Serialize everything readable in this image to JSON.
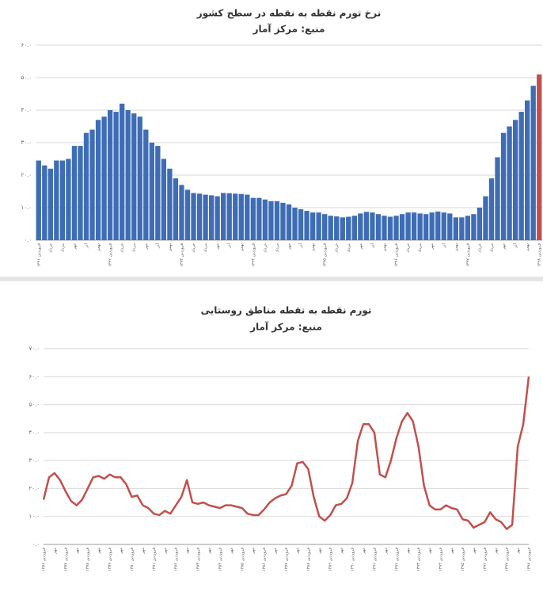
{
  "chart_data": [
    {
      "type": "bar",
      "title": "نرخ تورم نقطه به نقطه در سطح کشور",
      "subtitle": "منبع: مرکز آمار",
      "categories": [
        "فروردین ۱۳۹۱",
        null,
        "خرداد",
        null,
        "مرداد",
        null,
        "مهر",
        null,
        "آذر",
        null,
        "بهمن",
        null,
        "فروردین ۱۳۹۲",
        null,
        "خرداد",
        null,
        "مرداد",
        null,
        "مهر",
        null,
        "آذر",
        null,
        "بهمن",
        null,
        "فروردین ۱۳۹۳",
        null,
        "خرداد",
        null,
        "مرداد",
        null,
        "مهر",
        null,
        "آذر",
        null,
        "بهمن",
        null,
        "فروردین ۱۳۹۴",
        null,
        "خرداد",
        null,
        "مرداد",
        null,
        "مهر",
        null,
        "آذر",
        null,
        "بهمن",
        null,
        "فروردین ۱۳۹۵",
        null,
        "خرداد",
        null,
        "مرداد",
        null,
        "مهر",
        null,
        "آذر",
        null,
        "بهمن",
        null,
        "فروردین ۱۳۹۶",
        null,
        "خرداد",
        null,
        "مرداد",
        null,
        "مهر",
        null,
        "آذر",
        null,
        "بهمن",
        null,
        "فروردین ۱۳۹۷",
        null,
        "خرداد",
        null,
        "مرداد",
        null,
        "مهر",
        null,
        "آذر",
        null,
        "بهمن",
        null,
        "فروردین ۱۳۹۸"
      ],
      "values": [
        24.5,
        23,
        22,
        24.5,
        24.5,
        25,
        29,
        29,
        33,
        34,
        37,
        38,
        40,
        39.5,
        42,
        40,
        39,
        38,
        34,
        30,
        29,
        25,
        22,
        19,
        17,
        15.5,
        14.5,
        14.3,
        14,
        13.8,
        13.5,
        14.5,
        14.4,
        14.3,
        14.2,
        14,
        13,
        13,
        12.5,
        12,
        12,
        11.5,
        11,
        10,
        9.5,
        9,
        8.5,
        8.5,
        8,
        7.5,
        7.3,
        7,
        7.2,
        7.5,
        8.2,
        8.7,
        8.5,
        8,
        7.5,
        7.2,
        7.5,
        8,
        8.5,
        8.5,
        8.2,
        8,
        8.5,
        8.8,
        8.5,
        8.2,
        7,
        7,
        7.5,
        8,
        10,
        13.5,
        19,
        25.5,
        33,
        35,
        37,
        39.5,
        43,
        47.5,
        51
      ],
      "colors": [
        "#3e6db5",
        "#3e6db5",
        "#3e6db5",
        "#3e6db5",
        "#3e6db5",
        "#3e6db5",
        "#3e6db5",
        "#3e6db5",
        "#3e6db5",
        "#3e6db5",
        "#3e6db5",
        "#3e6db5",
        "#3e6db5",
        "#3e6db5",
        "#3e6db5",
        "#3e6db5",
        "#3e6db5",
        "#3e6db5",
        "#3e6db5",
        "#3e6db5",
        "#3e6db5",
        "#3e6db5",
        "#3e6db5",
        "#3e6db5",
        "#3e6db5",
        "#3e6db5",
        "#3e6db5",
        "#3e6db5",
        "#3e6db5",
        "#3e6db5",
        "#3e6db5",
        "#3e6db5",
        "#3e6db5",
        "#3e6db5",
        "#3e6db5",
        "#3e6db5",
        "#3e6db5",
        "#3e6db5",
        "#3e6db5",
        "#3e6db5",
        "#3e6db5",
        "#3e6db5",
        "#3e6db5",
        "#3e6db5",
        "#3e6db5",
        "#3e6db5",
        "#3e6db5",
        "#3e6db5",
        "#3e6db5",
        "#3e6db5",
        "#3e6db5",
        "#3e6db5",
        "#3e6db5",
        "#3e6db5",
        "#3e6db5",
        "#3e6db5",
        "#3e6db5",
        "#3e6db5",
        "#3e6db5",
        "#3e6db5",
        "#3e6db5",
        "#3e6db5",
        "#3e6db5",
        "#3e6db5",
        "#3e6db5",
        "#3e6db5",
        "#3e6db5",
        "#3e6db5",
        "#3e6db5",
        "#3e6db5",
        "#3e6db5",
        "#3e6db5",
        "#3e6db5",
        "#3e6db5",
        "#3e6db5",
        "#3e6db5",
        "#3e6db5",
        "#3e6db5",
        "#3e6db5",
        "#3e6db5",
        "#3e6db5",
        "#3e6db5",
        "#3e6db5",
        "#3e6db5",
        "#c0504d"
      ],
      "ylim": [
        0,
        60
      ],
      "yticks": [
        {
          "value": 0,
          "label": "۰.۰"
        },
        {
          "value": 10,
          "label": "۱۰.۰"
        },
        {
          "value": 20,
          "label": "۲۰.۰"
        },
        {
          "value": 30,
          "label": "۳۰.۰"
        },
        {
          "value": 40,
          "label": "۴۰.۰"
        },
        {
          "value": 50,
          "label": "۵۰.۰"
        },
        {
          "value": 60,
          "label": "۶۰.۰"
        }
      ],
      "grid": true
    },
    {
      "type": "line",
      "title": "تورم نقطه به نقطه مناطق روستایی",
      "subtitle": "منبع: مرکز آمار",
      "categories": [
        "فروردین ۱۳۷۶",
        null,
        "مهر",
        null,
        "فروردین ۱۳۷۷",
        null,
        "مهر",
        null,
        "فروردین ۱۳۷۸",
        null,
        "مهر",
        null,
        "فروردین ۱۳۷۹",
        null,
        "مهر",
        null,
        "فروردین ۱۳۸۰",
        null,
        "مهر",
        null,
        "فروردین ۱۳۸۱",
        null,
        "مهر",
        null,
        "فروردین ۱۳۸۲",
        null,
        "مهر",
        null,
        "فروردین ۱۳۸۳",
        null,
        "مهر",
        null,
        "فروردین ۱۳۸۴",
        null,
        "مهر",
        null,
        "فروردین ۱۳۸۵",
        null,
        "مهر",
        null,
        "فروردین ۱۳۸۶",
        null,
        "مهر",
        null,
        "فروردین ۱۳۸۷",
        null,
        "مهر",
        null,
        "فروردین ۱۳۸۸",
        null,
        "مهر",
        null,
        "فروردین ۱۳۸۹",
        null,
        "مهر",
        null,
        "فروردین ۱۳۹۰",
        null,
        "مهر",
        null,
        "فروردین ۱۳۹۱",
        null,
        "مهر",
        null,
        "فروردین ۱۳۹۲",
        null,
        "مهر",
        null,
        "فروردین ۱۳۹۳",
        null,
        "مهر",
        null,
        "فروردین ۱۳۹۴",
        null,
        "مهر",
        null,
        "فروردین ۱۳۹۵",
        null,
        "مهر",
        null,
        "فروردین ۱۳۹۶",
        null,
        "مهر",
        null,
        "فروردین ۱۳۹۷",
        null,
        "مهر",
        null,
        "فروردین ۱۳۹۸"
      ],
      "values": [
        16,
        24,
        25.5,
        23,
        19,
        15.5,
        14,
        16,
        20,
        24,
        24.5,
        23.5,
        25,
        24,
        24,
        21.5,
        17,
        17.5,
        14,
        13,
        11,
        10.5,
        12,
        11,
        14,
        17,
        23,
        15,
        14.5,
        15,
        14,
        13.5,
        13,
        14,
        14,
        13.5,
        13,
        11,
        10.5,
        10.5,
        12.5,
        15,
        16.5,
        17.5,
        18,
        21,
        29,
        29.5,
        27,
        17,
        10,
        8.5,
        10.5,
        14,
        14.5,
        16.5,
        22,
        37,
        43,
        43,
        40,
        25,
        24,
        30,
        38,
        44,
        47,
        44,
        35,
        21,
        14,
        12.5,
        12.5,
        14,
        13,
        12.5,
        9,
        8.5,
        6,
        7,
        8,
        11.5,
        9,
        8,
        5.5,
        7,
        35,
        43,
        60
      ],
      "color": "#c0504d",
      "ylim": [
        0,
        70
      ],
      "yticks": [
        {
          "value": 0,
          "label": "۰.۰"
        },
        {
          "value": 10,
          "label": "۱۰.۰"
        },
        {
          "value": 20,
          "label": "۲۰.۰"
        },
        {
          "value": 30,
          "label": "۳۰.۰"
        },
        {
          "value": 40,
          "label": "۴۰.۰"
        },
        {
          "value": 50,
          "label": "۵۰.۰"
        },
        {
          "value": 60,
          "label": "۶۰.۰"
        },
        {
          "value": 70,
          "label": "۷۰.۰"
        }
      ],
      "grid": true
    }
  ]
}
